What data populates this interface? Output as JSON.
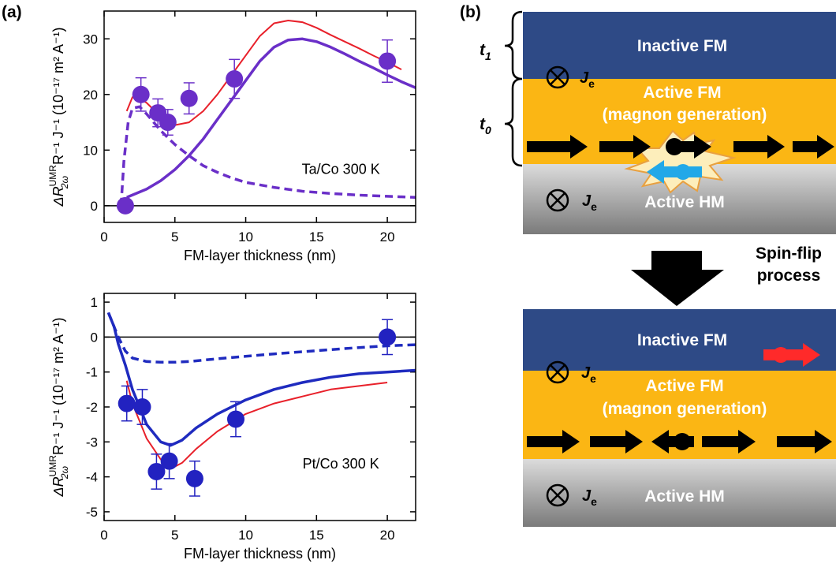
{
  "panel_label": "(a)",
  "chart_data": [
    {
      "type": "line",
      "xlabel": "FM-layer thickness (nm)",
      "ylabel": {
        "base": "ΔR",
        "sup": "UMR",
        "sub": "2ω",
        "rest": "R⁻¹ J⁻¹ (10⁻¹⁷ m² A⁻¹)"
      },
      "annotation": "Ta/Co 300 K",
      "xlim": [
        0,
        22
      ],
      "xticks": [
        0,
        5,
        10,
        15,
        20
      ],
      "ylim": [
        -3,
        35
      ],
      "yticks": [
        0,
        10,
        20,
        30
      ],
      "zero_line": true,
      "series": [
        {
          "color": "#e8202a",
          "width": 2,
          "dashed": false,
          "x": [
            1.6,
            2,
            2.5,
            3,
            4,
            5,
            6,
            7,
            8,
            9,
            10,
            11,
            12,
            13,
            14,
            15,
            16,
            17,
            18,
            19,
            20,
            21
          ],
          "values": [
            17,
            19.5,
            19.3,
            18.5,
            16,
            14.5,
            15,
            17,
            20,
            23.5,
            27,
            30.5,
            32.8,
            33.3,
            33,
            32,
            30.7,
            29.5,
            28.3,
            27,
            25.8,
            24.5
          ]
        },
        {
          "color": "#6a2fc8",
          "width": 3.5,
          "dashed": false,
          "x": [
            1.6,
            3,
            4,
            5,
            6,
            7,
            8,
            9,
            10,
            11,
            12,
            13,
            14,
            15,
            16,
            17,
            18,
            19,
            20,
            21,
            22
          ],
          "values": [
            1.5,
            3,
            4.5,
            6.5,
            9,
            12,
            15.5,
            19,
            22.5,
            26,
            28.5,
            29.8,
            30,
            29.5,
            28.5,
            27.3,
            26,
            24.8,
            23.5,
            22.3,
            21.2
          ]
        },
        {
          "color": "#6a2fc8",
          "width": 3.5,
          "dashed": true,
          "x": [
            1.2,
            1.4,
            1.7,
            2,
            2.5,
            3,
            4,
            5,
            6,
            7,
            8,
            9,
            10,
            12,
            14,
            16,
            18,
            20,
            22
          ],
          "values": [
            0,
            8,
            15,
            17.5,
            17.8,
            16.5,
            13.5,
            11,
            9,
            7.2,
            6,
            5,
            4.2,
            3.3,
            2.6,
            2.2,
            1.9,
            1.7,
            1.5
          ]
        }
      ],
      "points": {
        "color": "#6a2fc8",
        "x": [
          1.5,
          2.6,
          3.8,
          4.5,
          6,
          9.2,
          20
        ],
        "values": [
          0,
          20,
          16.7,
          15,
          19.3,
          22.8,
          26
        ],
        "errors": [
          null,
          3,
          2.5,
          2.3,
          2.8,
          3.5,
          3.8
        ]
      }
    },
    {
      "type": "line",
      "xlabel": "FM-layer thickness (nm)",
      "ylabel": {
        "base": "ΔR",
        "sup": "UMR",
        "sub": "2ω",
        "rest": "R⁻¹ J⁻¹ (10⁻¹⁷ m² A⁻¹)"
      },
      "annotation": "Pt/Co 300 K",
      "xlim": [
        0,
        22
      ],
      "xticks": [
        0,
        5,
        10,
        15,
        20
      ],
      "ylim": [
        -5.25,
        1.25
      ],
      "yticks": [
        -5,
        -4,
        -3,
        -2,
        -1,
        0,
        1
      ],
      "zero_line": true,
      "series": [
        {
          "color": "#e8202a",
          "width": 2,
          "dashed": false,
          "x": [
            1.6,
            2,
            3,
            4,
            4.8,
            5.5,
            6.5,
            8,
            10,
            12,
            14,
            16,
            18,
            20
          ],
          "values": [
            -1.25,
            -1.9,
            -2.9,
            -3.5,
            -3.75,
            -3.6,
            -3.2,
            -2.7,
            -2.2,
            -1.9,
            -1.7,
            -1.5,
            -1.4,
            -1.3
          ]
        },
        {
          "color": "#1f2bbf",
          "width": 3.5,
          "dashed": false,
          "x": [
            0.3,
            0.7,
            1,
            1.5,
            2,
            3,
            4,
            4.7,
            5.5,
            6.5,
            8,
            10,
            12,
            14,
            16,
            18,
            20,
            22
          ],
          "values": [
            0.7,
            0.3,
            -0.2,
            -0.8,
            -1.5,
            -2.5,
            -3,
            -3.1,
            -2.95,
            -2.6,
            -2.2,
            -1.8,
            -1.5,
            -1.3,
            -1.15,
            -1.05,
            -1.0,
            -0.95
          ]
        },
        {
          "color": "#1f2bbf",
          "width": 3.5,
          "dashed": true,
          "x": [
            0.3,
            0.7,
            1,
            1.5,
            2,
            3,
            4,
            5,
            6,
            8,
            10,
            12,
            14,
            16,
            18,
            20,
            22
          ],
          "values": [
            0.7,
            0.3,
            0,
            -0.4,
            -0.6,
            -0.7,
            -0.72,
            -0.72,
            -0.7,
            -0.62,
            -0.55,
            -0.48,
            -0.42,
            -0.36,
            -0.3,
            -0.25,
            -0.22
          ]
        }
      ],
      "points": {
        "color": "#2222c0",
        "x": [
          1.6,
          2.7,
          3.7,
          4.6,
          6.4,
          9.3,
          20
        ],
        "values": [
          -1.9,
          -2.0,
          -3.85,
          -3.55,
          -4.05,
          -2.35,
          0
        ],
        "errors": [
          0.5,
          0.5,
          0.5,
          0.5,
          0.5,
          0.5,
          0.5
        ]
      }
    }
  ],
  "diagram": {
    "label": "(b)",
    "thickness": [
      {
        "symbol": "t",
        "sub": "1"
      },
      {
        "symbol": "t",
        "sub": "0"
      }
    ],
    "panels": [
      {
        "inactive": "Inactive FM",
        "active_fm": "Active FM",
        "active_fm_note": "(magnon generation)",
        "active_hm": "Active HM",
        "current": {
          "symbol": "J",
          "sub": "e"
        }
      },
      {
        "inactive": "Inactive FM",
        "active_fm": "Active FM",
        "active_fm_note": "(magnon generation)",
        "active_hm": "Active HM",
        "current": {
          "symbol": "J",
          "sub": "e"
        }
      }
    ],
    "arrow_label": [
      "Spin-flip",
      "process"
    ]
  }
}
